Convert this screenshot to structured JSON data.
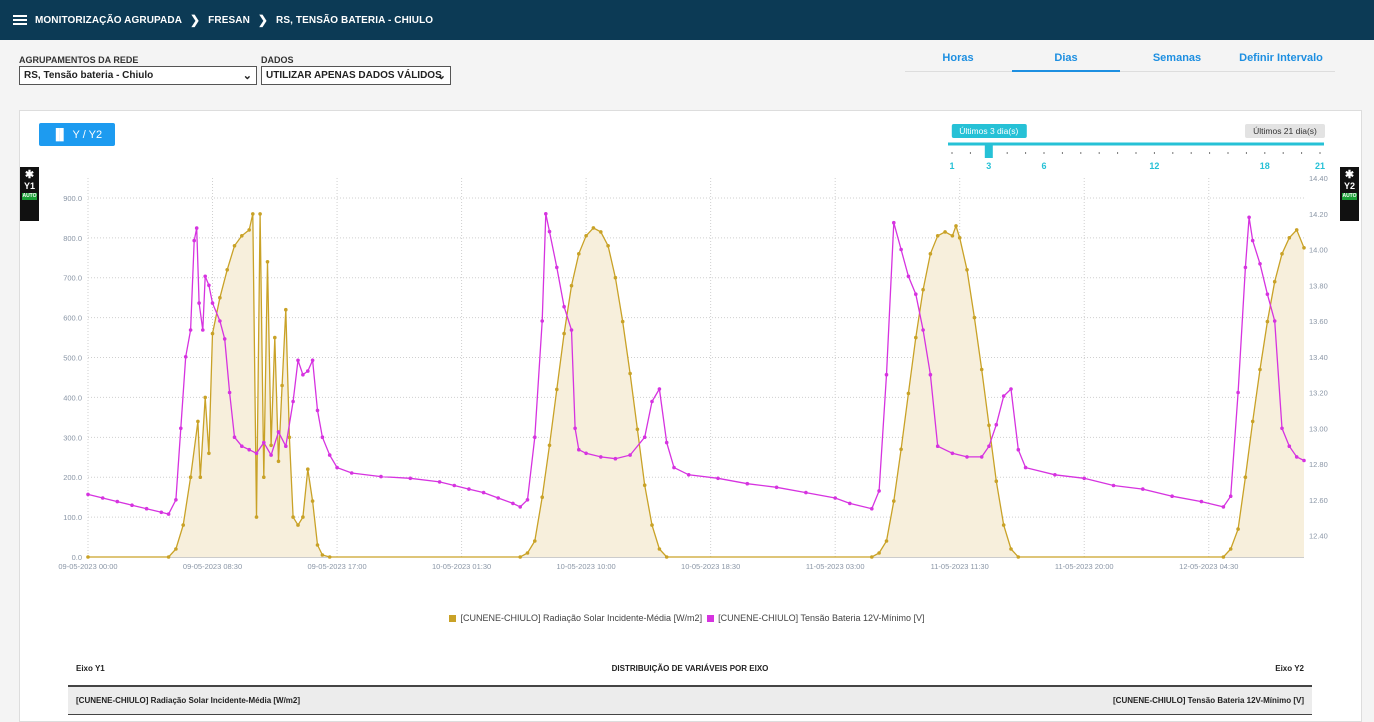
{
  "breadcrumb": {
    "items": [
      "MONITORIZAÇÃO AGRUPADA",
      "FRESAN",
      "RS, TENSÃO BATERIA - CHIULO"
    ]
  },
  "controls": {
    "group_label": "AGRUPAMENTOS DA REDE",
    "group_value": "RS, Tensão bateria - Chiulo",
    "data_label": "DADOS",
    "data_value": "UTILIZAR APENAS DADOS VÁLIDOS"
  },
  "tabs": [
    {
      "label": "Horas",
      "active": false
    },
    {
      "label": "Dias",
      "active": true
    },
    {
      "label": "Semanas",
      "active": false
    },
    {
      "label": "Definir Intervalo",
      "active": false
    }
  ],
  "chart_button": {
    "label": "Y / Y2"
  },
  "slider": {
    "selected_label": "Últimos 3 dia(s)",
    "max_label": "Últimos 21 dia(s)",
    "ticks": [
      "1",
      "3",
      "6",
      "12",
      "18",
      "21"
    ],
    "value": 3,
    "min": 1,
    "max": 21
  },
  "axis_tabs": {
    "y1": {
      "label": "Y1",
      "mode": "AUTO"
    },
    "y2": {
      "label": "Y2",
      "mode": "AUTO"
    }
  },
  "colors": {
    "radiation": "#c9a227",
    "radiation_fill": "#f7efdc",
    "voltage": "#d633e0",
    "accent": "#1d8fe1",
    "slider": "#26c1d6"
  },
  "chart_data": {
    "type": "line",
    "x_type": "datetime",
    "x_range": [
      "09-05-2023 00:00",
      "12-05-2023 11:00"
    ],
    "x_tick_labels": [
      "09-05-2023 00:00",
      "09-05-2023 08:30",
      "09-05-2023 17:00",
      "10-05-2023 01:30",
      "10-05-2023 10:00",
      "10-05-2023 18:30",
      "11-05-2023 03:00",
      "11-05-2023 11:30",
      "11-05-2023 20:00",
      "12-05-2023 04:30"
    ],
    "y_ticks": [
      "0.0",
      "100.0",
      "200.0",
      "300.0",
      "400.0",
      "500.0",
      "600.0",
      "700.0",
      "800.0",
      "900.0"
    ],
    "y2_ticks": [
      "12.40",
      "12.60",
      "12.80",
      "13.00",
      "13.20",
      "13.40",
      "13.60",
      "13.80",
      "14.00",
      "14.20",
      "14.40"
    ],
    "ylim": [
      0,
      950
    ],
    "y2lim": [
      12.28,
      14.4
    ],
    "grid": true,
    "legend_position": "bottom",
    "series": [
      {
        "name": "[CUNENE-CHIULO] Radiação Solar Incidente-Média [W/m2]",
        "axis": "y1",
        "type": "area",
        "points": [
          [
            "09-05-2023 00:00",
            0
          ],
          [
            "09-05-2023 05:30",
            0
          ],
          [
            "09-05-2023 06:00",
            20
          ],
          [
            "09-05-2023 06:30",
            80
          ],
          [
            "09-05-2023 07:00",
            200
          ],
          [
            "09-05-2023 07:30",
            340
          ],
          [
            "09-05-2023 07:40",
            200
          ],
          [
            "09-05-2023 08:00",
            400
          ],
          [
            "09-05-2023 08:15",
            260
          ],
          [
            "09-05-2023 08:30",
            560
          ],
          [
            "09-05-2023 09:00",
            650
          ],
          [
            "09-05-2023 09:30",
            720
          ],
          [
            "09-05-2023 10:00",
            780
          ],
          [
            "09-05-2023 10:30",
            805
          ],
          [
            "09-05-2023 11:00",
            820
          ],
          [
            "09-05-2023 11:15",
            860
          ],
          [
            "09-05-2023 11:30",
            100
          ],
          [
            "09-05-2023 11:45",
            860
          ],
          [
            "09-05-2023 12:00",
            200
          ],
          [
            "09-05-2023 12:15",
            740
          ],
          [
            "09-05-2023 12:30",
            280
          ],
          [
            "09-05-2023 12:45",
            550
          ],
          [
            "09-05-2023 13:00",
            240
          ],
          [
            "09-05-2023 13:15",
            430
          ],
          [
            "09-05-2023 13:30",
            620
          ],
          [
            "09-05-2023 13:45",
            300
          ],
          [
            "09-05-2023 14:00",
            100
          ],
          [
            "09-05-2023 14:20",
            80
          ],
          [
            "09-05-2023 14:40",
            100
          ],
          [
            "09-05-2023 15:00",
            220
          ],
          [
            "09-05-2023 15:20",
            140
          ],
          [
            "09-05-2023 15:40",
            30
          ],
          [
            "09-05-2023 16:00",
            5
          ],
          [
            "09-05-2023 16:30",
            0
          ],
          [
            "10-05-2023 05:30",
            0
          ],
          [
            "10-05-2023 06:00",
            10
          ],
          [
            "10-05-2023 06:30",
            40
          ],
          [
            "10-05-2023 07:00",
            150
          ],
          [
            "10-05-2023 07:30",
            280
          ],
          [
            "10-05-2023 08:00",
            420
          ],
          [
            "10-05-2023 08:30",
            560
          ],
          [
            "10-05-2023 09:00",
            680
          ],
          [
            "10-05-2023 09:30",
            760
          ],
          [
            "10-05-2023 10:00",
            805
          ],
          [
            "10-05-2023 10:30",
            825
          ],
          [
            "10-05-2023 11:00",
            815
          ],
          [
            "10-05-2023 11:30",
            780
          ],
          [
            "10-05-2023 12:00",
            700
          ],
          [
            "10-05-2023 12:30",
            590
          ],
          [
            "10-05-2023 13:00",
            460
          ],
          [
            "10-05-2023 13:30",
            320
          ],
          [
            "10-05-2023 14:00",
            180
          ],
          [
            "10-05-2023 14:30",
            80
          ],
          [
            "10-05-2023 15:00",
            20
          ],
          [
            "10-05-2023 15:30",
            0
          ],
          [
            "11-05-2023 05:30",
            0
          ],
          [
            "11-05-2023 06:00",
            10
          ],
          [
            "11-05-2023 06:30",
            40
          ],
          [
            "11-05-2023 07:00",
            140
          ],
          [
            "11-05-2023 07:30",
            270
          ],
          [
            "11-05-2023 08:00",
            410
          ],
          [
            "11-05-2023 08:30",
            550
          ],
          [
            "11-05-2023 09:00",
            670
          ],
          [
            "11-05-2023 09:30",
            760
          ],
          [
            "11-05-2023 10:00",
            805
          ],
          [
            "11-05-2023 10:30",
            815
          ],
          [
            "11-05-2023 11:00",
            805
          ],
          [
            "11-05-2023 11:15",
            830
          ],
          [
            "11-05-2023 11:30",
            800
          ],
          [
            "11-05-2023 12:00",
            720
          ],
          [
            "11-05-2023 12:30",
            600
          ],
          [
            "11-05-2023 13:00",
            470
          ],
          [
            "11-05-2023 13:30",
            330
          ],
          [
            "11-05-2023 14:00",
            190
          ],
          [
            "11-05-2023 14:30",
            80
          ],
          [
            "11-05-2023 15:00",
            20
          ],
          [
            "11-05-2023 15:30",
            0
          ],
          [
            "12-05-2023 05:30",
            0
          ],
          [
            "12-05-2023 06:00",
            20
          ],
          [
            "12-05-2023 06:30",
            70
          ],
          [
            "12-05-2023 07:00",
            200
          ],
          [
            "12-05-2023 07:30",
            340
          ],
          [
            "12-05-2023 08:00",
            470
          ],
          [
            "12-05-2023 08:30",
            590
          ],
          [
            "12-05-2023 09:00",
            690
          ],
          [
            "12-05-2023 09:30",
            760
          ],
          [
            "12-05-2023 10:00",
            800
          ],
          [
            "12-05-2023 10:30",
            820
          ],
          [
            "12-05-2023 11:00",
            775
          ]
        ]
      },
      {
        "name": "[CUNENE-CHIULO] Tensão Bateria 12V-Mínimo [V]",
        "axis": "y2",
        "type": "line",
        "points": [
          [
            "09-05-2023 00:00",
            12.63
          ],
          [
            "09-05-2023 01:00",
            12.61
          ],
          [
            "09-05-2023 02:00",
            12.59
          ],
          [
            "09-05-2023 03:00",
            12.57
          ],
          [
            "09-05-2023 04:00",
            12.55
          ],
          [
            "09-05-2023 05:00",
            12.53
          ],
          [
            "09-05-2023 05:30",
            12.52
          ],
          [
            "09-05-2023 06:00",
            12.6
          ],
          [
            "09-05-2023 06:20",
            13.0
          ],
          [
            "09-05-2023 06:40",
            13.4
          ],
          [
            "09-05-2023 07:00",
            13.55
          ],
          [
            "09-05-2023 07:15",
            14.05
          ],
          [
            "09-05-2023 07:25",
            14.12
          ],
          [
            "09-05-2023 07:35",
            13.7
          ],
          [
            "09-05-2023 07:50",
            13.55
          ],
          [
            "09-05-2023 08:00",
            13.85
          ],
          [
            "09-05-2023 08:15",
            13.8
          ],
          [
            "09-05-2023 08:30",
            13.7
          ],
          [
            "09-05-2023 09:00",
            13.6
          ],
          [
            "09-05-2023 09:20",
            13.5
          ],
          [
            "09-05-2023 09:40",
            13.2
          ],
          [
            "09-05-2023 10:00",
            12.95
          ],
          [
            "09-05-2023 10:30",
            12.9
          ],
          [
            "09-05-2023 11:00",
            12.88
          ],
          [
            "09-05-2023 11:30",
            12.86
          ],
          [
            "09-05-2023 12:00",
            12.92
          ],
          [
            "09-05-2023 12:30",
            12.85
          ],
          [
            "09-05-2023 13:00",
            12.98
          ],
          [
            "09-05-2023 13:30",
            12.9
          ],
          [
            "09-05-2023 14:00",
            13.15
          ],
          [
            "09-05-2023 14:20",
            13.38
          ],
          [
            "09-05-2023 14:40",
            13.3
          ],
          [
            "09-05-2023 15:00",
            13.32
          ],
          [
            "09-05-2023 15:20",
            13.38
          ],
          [
            "09-05-2023 15:40",
            13.1
          ],
          [
            "09-05-2023 16:00",
            12.95
          ],
          [
            "09-05-2023 16:30",
            12.85
          ],
          [
            "09-05-2023 17:00",
            12.78
          ],
          [
            "09-05-2023 18:00",
            12.75
          ],
          [
            "09-05-2023 20:00",
            12.73
          ],
          [
            "09-05-2023 22:00",
            12.72
          ],
          [
            "10-05-2023 00:00",
            12.7
          ],
          [
            "10-05-2023 01:00",
            12.68
          ],
          [
            "10-05-2023 02:00",
            12.66
          ],
          [
            "10-05-2023 03:00",
            12.64
          ],
          [
            "10-05-2023 04:00",
            12.61
          ],
          [
            "10-05-2023 05:00",
            12.58
          ],
          [
            "10-05-2023 05:30",
            12.56
          ],
          [
            "10-05-2023 06:00",
            12.6
          ],
          [
            "10-05-2023 06:30",
            12.95
          ],
          [
            "10-05-2023 07:00",
            13.6
          ],
          [
            "10-05-2023 07:15",
            14.2
          ],
          [
            "10-05-2023 07:30",
            14.1
          ],
          [
            "10-05-2023 08:00",
            13.9
          ],
          [
            "10-05-2023 08:30",
            13.68
          ],
          [
            "10-05-2023 09:00",
            13.55
          ],
          [
            "10-05-2023 09:15",
            13.0
          ],
          [
            "10-05-2023 09:30",
            12.88
          ],
          [
            "10-05-2023 10:00",
            12.86
          ],
          [
            "10-05-2023 11:00",
            12.84
          ],
          [
            "10-05-2023 12:00",
            12.83
          ],
          [
            "10-05-2023 13:00",
            12.85
          ],
          [
            "10-05-2023 14:00",
            12.95
          ],
          [
            "10-05-2023 14:30",
            13.15
          ],
          [
            "10-05-2023 15:00",
            13.22
          ],
          [
            "10-05-2023 15:30",
            12.92
          ],
          [
            "10-05-2023 16:00",
            12.78
          ],
          [
            "10-05-2023 17:00",
            12.74
          ],
          [
            "10-05-2023 19:00",
            12.72
          ],
          [
            "10-05-2023 21:00",
            12.69
          ],
          [
            "10-05-2023 23:00",
            12.67
          ],
          [
            "11-05-2023 01:00",
            12.64
          ],
          [
            "11-05-2023 03:00",
            12.61
          ],
          [
            "11-05-2023 04:00",
            12.58
          ],
          [
            "11-05-2023 05:30",
            12.55
          ],
          [
            "11-05-2023 06:00",
            12.65
          ],
          [
            "11-05-2023 06:30",
            13.3
          ],
          [
            "11-05-2023 07:00",
            14.15
          ],
          [
            "11-05-2023 07:30",
            14.0
          ],
          [
            "11-05-2023 08:00",
            13.85
          ],
          [
            "11-05-2023 08:30",
            13.75
          ],
          [
            "11-05-2023 09:00",
            13.55
          ],
          [
            "11-05-2023 09:30",
            13.3
          ],
          [
            "11-05-2023 10:00",
            12.9
          ],
          [
            "11-05-2023 11:00",
            12.86
          ],
          [
            "11-05-2023 12:00",
            12.84
          ],
          [
            "11-05-2023 13:00",
            12.84
          ],
          [
            "11-05-2023 13:30",
            12.9
          ],
          [
            "11-05-2023 14:00",
            13.02
          ],
          [
            "11-05-2023 14:30",
            13.18
          ],
          [
            "11-05-2023 15:00",
            13.22
          ],
          [
            "11-05-2023 15:30",
            12.88
          ],
          [
            "11-05-2023 16:00",
            12.78
          ],
          [
            "11-05-2023 18:00",
            12.74
          ],
          [
            "11-05-2023 20:00",
            12.72
          ],
          [
            "11-05-2023 22:00",
            12.68
          ],
          [
            "12-05-2023 00:00",
            12.66
          ],
          [
            "12-05-2023 02:00",
            12.62
          ],
          [
            "12-05-2023 04:00",
            12.59
          ],
          [
            "12-05-2023 05:30",
            12.56
          ],
          [
            "12-05-2023 06:00",
            12.62
          ],
          [
            "12-05-2023 06:30",
            13.2
          ],
          [
            "12-05-2023 07:00",
            13.9
          ],
          [
            "12-05-2023 07:15",
            14.18
          ],
          [
            "12-05-2023 07:30",
            14.05
          ],
          [
            "12-05-2023 08:00",
            13.92
          ],
          [
            "12-05-2023 08:30",
            13.75
          ],
          [
            "12-05-2023 09:00",
            13.6
          ],
          [
            "12-05-2023 09:30",
            13.0
          ],
          [
            "12-05-2023 10:00",
            12.9
          ],
          [
            "12-05-2023 10:30",
            12.84
          ],
          [
            "12-05-2023 11:00",
            12.82
          ]
        ]
      }
    ]
  },
  "distribution": {
    "left_header": "Eixo Y1",
    "center_header": "DISTRIBUIÇÃO DE VARIÁVEIS POR EIXO",
    "right_header": "Eixo Y2",
    "left_value": "[CUNENE-CHIULO] Radiação Solar Incidente-Média [W/m2]",
    "right_value": "[CUNENE-CHIULO] Tensão Bateria 12V-Mínimo [V]"
  }
}
